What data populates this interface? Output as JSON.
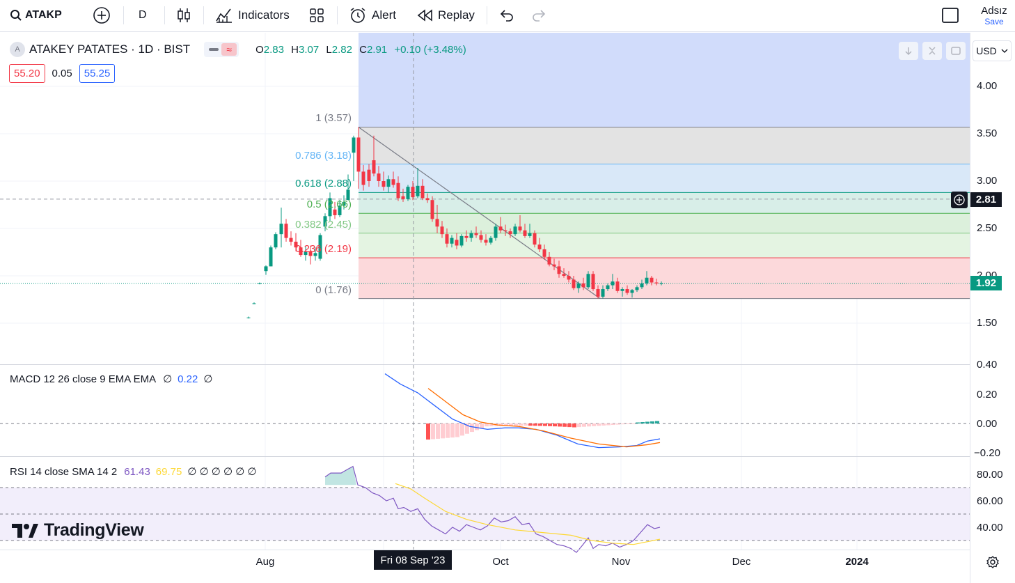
{
  "toolbar": {
    "symbol": "ATAKP",
    "interval": "D",
    "indicators_label": "Indicators",
    "alert_label": "Alert",
    "replay_label": "Replay",
    "layout_name": "Adsız",
    "save_label": "Save"
  },
  "legend": {
    "title": "ATAKEY PATATES · 1D · BIST",
    "logo_letter": "A",
    "o_label": "O",
    "o_value": "2.83",
    "h_label": "H",
    "h_value": "3.07",
    "l_label": "L",
    "l_value": "2.82",
    "c_label": "C",
    "c_value": "2.91",
    "change": "+0.10 (+3.48%)",
    "bid": "55.20",
    "spread": "0.05",
    "ask": "55.25"
  },
  "currency": "USD",
  "price_axis": {
    "labels": [
      "4.00",
      "3.50",
      "3.00",
      "2.50",
      "2.00",
      "1.50"
    ],
    "crosshair_price": "2.81",
    "last_price": "1.92"
  },
  "fib_levels": [
    {
      "ratio": "1",
      "price": "3.57",
      "text": "1 (3.57)",
      "color": "#787b86"
    },
    {
      "ratio": "0.786",
      "price": "3.18",
      "text": "0.786 (3.18)",
      "color": "#64b5f6"
    },
    {
      "ratio": "0.618",
      "price": "2.88",
      "text": "0.618 (2.88)",
      "color": "#089981"
    },
    {
      "ratio": "0.5",
      "price": "2.66",
      "text": "0.5 (2.66)",
      "color": "#4caf50"
    },
    {
      "ratio": "0.382",
      "price": "2.45",
      "text": "0.382 (2.45)",
      "color": "#81c784"
    },
    {
      "ratio": "0.236",
      "price": "2.19",
      "text": "0.236 (2.19)",
      "color": "#f23645"
    },
    {
      "ratio": "0",
      "price": "1.76",
      "text": "0 (1.76)",
      "color": "#787b86"
    }
  ],
  "macd": {
    "label": "MACD 12 26 close 9 EMA EMA",
    "v1": "∅",
    "v2": "0.22",
    "v3": "∅",
    "axis": [
      "0.40",
      "0.20",
      "0.00",
      "−0.20"
    ]
  },
  "rsi": {
    "label": "RSI 14 close SMA 14 2",
    "v1": "61.43",
    "v2": "69.75",
    "rest": "∅ ∅ ∅ ∅ ∅ ∅",
    "axis": [
      "80.00",
      "60.00",
      "40.00"
    ]
  },
  "time_axis": {
    "labels": [
      "Aug",
      "Oct",
      "Nov",
      "Dec",
      "2024"
    ],
    "crosshair_date": "Fri 08 Sep '23"
  },
  "watermark": "TradingView",
  "colors": {
    "up": "#089981",
    "down": "#f23645",
    "macd_line": "#2962ff",
    "signal_line": "#ff6d00",
    "rsi_line": "#7e57c2",
    "rsi_sma": "#fdd835"
  }
}
